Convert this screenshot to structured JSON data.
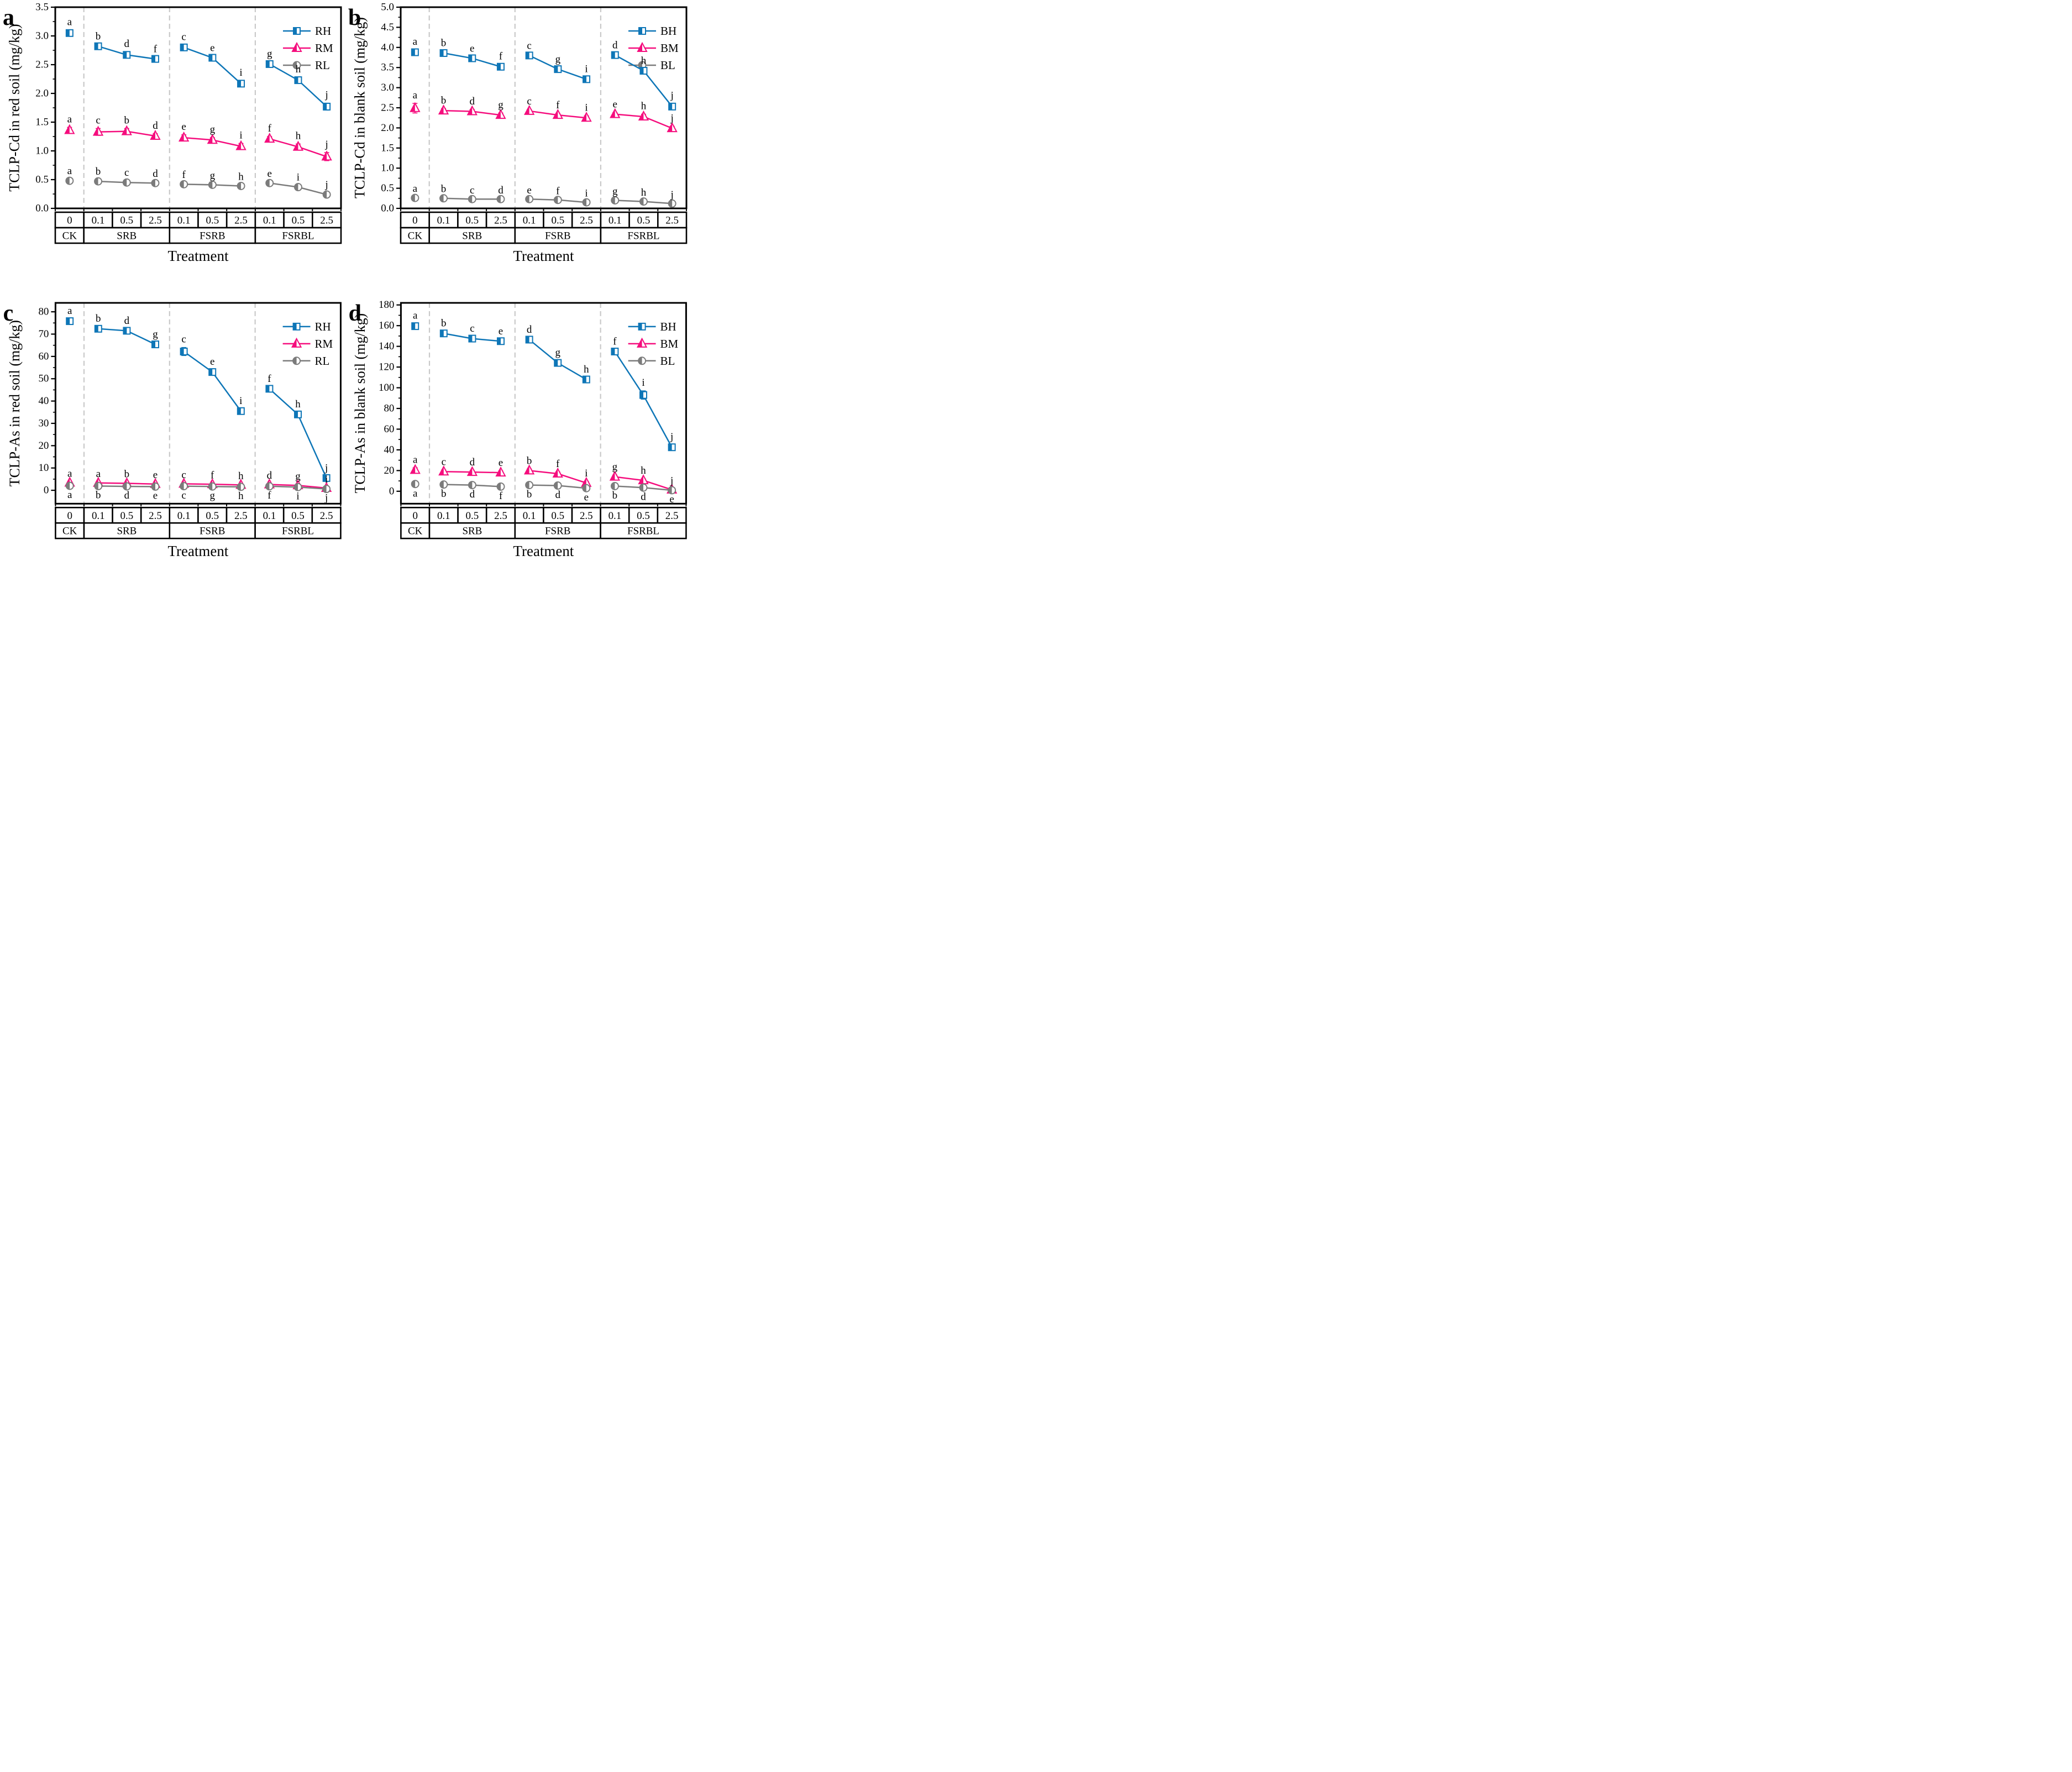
{
  "figure": {
    "xlabel": "Treatment",
    "dose_row": [
      "0",
      "0.1",
      "0.5",
      "2.5",
      "0.1",
      "0.5",
      "2.5",
      "0.1",
      "0.5",
      "2.5"
    ],
    "group_row": [
      {
        "label": "CK",
        "span": 1
      },
      {
        "label": "SRB",
        "span": 3
      },
      {
        "label": "FSRB",
        "span": 3
      },
      {
        "label": "FSRBL",
        "span": 3
      }
    ],
    "colors": {
      "high": "#0e76b7",
      "mid": "#f50d7d",
      "low": "#7b7b7b"
    },
    "separator_color": "#c9c9c9"
  },
  "chart_data": [
    {
      "id": "a",
      "panel_label": "a",
      "type": "line",
      "ylabel": "TCLP-Cd in red soil (mg/kg)",
      "xlabel": "Treatment",
      "ylim": [
        0,
        3.5
      ],
      "yticks": {
        "major": 0.5,
        "minor": 0.25,
        "max": 3.5,
        "decimals": 1
      },
      "legend_position": "top-right",
      "legend": [
        "RH",
        "RM",
        "RL"
      ],
      "series": [
        {
          "name": "RH",
          "marker": "square",
          "color_key": "high",
          "letters_position": "above",
          "values": [
            3.05,
            2.82,
            2.67,
            2.6,
            2.8,
            2.62,
            2.17,
            2.51,
            2.23,
            1.77
          ],
          "errors": [
            0.05,
            0.03,
            0.05,
            0.03,
            0.04,
            0.03,
            0.05,
            0.04,
            0.05,
            0.06
          ],
          "letters": [
            "a",
            "b",
            "d",
            "f",
            "c",
            "e",
            "i",
            "g",
            "h",
            "j"
          ]
        },
        {
          "name": "RM",
          "marker": "triangle",
          "color_key": "mid",
          "letters_position": "above",
          "values": [
            1.36,
            1.33,
            1.34,
            1.26,
            1.23,
            1.19,
            1.08,
            1.21,
            1.07,
            0.9
          ],
          "errors": [
            0.05,
            0.06,
            0.05,
            0.04,
            0.05,
            0.04,
            0.05,
            0.04,
            0.05,
            0.07
          ],
          "letters": [
            "a",
            "c",
            "b",
            "d",
            "e",
            "g",
            "i",
            "f",
            "h",
            "j"
          ]
        },
        {
          "name": "RL",
          "marker": "circle",
          "color_key": "low",
          "letters_position": "above",
          "values": [
            0.48,
            0.47,
            0.45,
            0.44,
            0.42,
            0.41,
            0.39,
            0.44,
            0.37,
            0.24
          ],
          "errors": [
            0.03,
            0.03,
            0.03,
            0.02,
            0.02,
            0.02,
            0.02,
            0.02,
            0.03,
            0.03
          ],
          "letters": [
            "a",
            "b",
            "c",
            "d",
            "f",
            "g",
            "h",
            "e",
            "i",
            "j"
          ]
        }
      ]
    },
    {
      "id": "b",
      "panel_label": "b",
      "type": "line",
      "ylabel": "TCLP-Cd in blank soil (mg/kg)",
      "xlabel": "Treatment",
      "ylim": [
        0,
        5.0
      ],
      "yticks": {
        "major": 0.5,
        "minor": 0.25,
        "max": 5.0,
        "decimals": 1
      },
      "legend_position": "top-right",
      "legend": [
        "BH",
        "BM",
        "BL"
      ],
      "series": [
        {
          "name": "BH",
          "marker": "square",
          "color_key": "high",
          "letters_position": "above",
          "values": [
            3.88,
            3.86,
            3.73,
            3.52,
            3.8,
            3.46,
            3.21,
            3.81,
            3.42,
            2.53
          ],
          "errors": [
            0.06,
            0.05,
            0.04,
            0.06,
            0.04,
            0.04,
            0.05,
            0.04,
            0.05,
            0.07
          ],
          "letters": [
            "a",
            "b",
            "e",
            "f",
            "c",
            "g",
            "i",
            "d",
            "h",
            "j"
          ]
        },
        {
          "name": "BM",
          "marker": "triangle",
          "color_key": "mid",
          "letters_position": "above",
          "values": [
            2.49,
            2.43,
            2.41,
            2.32,
            2.42,
            2.32,
            2.25,
            2.34,
            2.28,
            1.99
          ],
          "errors": [
            0.12,
            0.05,
            0.05,
            0.05,
            0.04,
            0.04,
            0.05,
            0.04,
            0.06,
            0.05
          ],
          "letters": [
            "a",
            "b",
            "d",
            "g",
            "c",
            "f",
            "i",
            "e",
            "h",
            "j"
          ]
        },
        {
          "name": "BL",
          "marker": "circle",
          "color_key": "low",
          "letters_position": "above",
          "values": [
            0.26,
            0.25,
            0.23,
            0.23,
            0.23,
            0.21,
            0.15,
            0.2,
            0.17,
            0.12
          ],
          "errors": [
            0.03,
            0.03,
            0.02,
            0.02,
            0.02,
            0.02,
            0.02,
            0.02,
            0.02,
            0.02
          ],
          "letters": [
            "a",
            "b",
            "c",
            "d",
            "e",
            "f",
            "i",
            "g",
            "h",
            "j"
          ]
        }
      ]
    },
    {
      "id": "c",
      "panel_label": "c",
      "type": "line",
      "ylabel": "TCLP-As in red soil (mg/kg)",
      "xlabel": "Treatment",
      "ylim": [
        -6,
        84
      ],
      "yticks": {
        "major": 10,
        "minor": 5,
        "max": 80,
        "decimals": 0
      },
      "legend_position": "top-right",
      "legend": [
        "RH",
        "RM",
        "RL"
      ],
      "series": [
        {
          "name": "RH",
          "marker": "square",
          "color_key": "high",
          "letters_position": "above",
          "values": [
            75.8,
            72.4,
            71.5,
            65.4,
            62.2,
            53.0,
            35.5,
            45.5,
            34.0,
            5.5
          ],
          "errors": [
            1.0,
            0.9,
            0.9,
            0.9,
            1.8,
            1.0,
            0.9,
            0.9,
            0.9,
            0.9
          ],
          "letters": [
            "a",
            "b",
            "d",
            "g",
            "c",
            "e",
            "i",
            "f",
            "h",
            "j"
          ]
        },
        {
          "name": "RM",
          "marker": "triangle",
          "color_key": "mid",
          "letters_position": "above",
          "values": [
            3.4,
            3.3,
            3.1,
            2.8,
            2.9,
            2.7,
            2.4,
            2.6,
            2.2,
            1.0
          ],
          "errors": [
            0.5,
            0.5,
            0.5,
            0.4,
            0.4,
            0.4,
            0.4,
            0.4,
            0.4,
            0.3
          ],
          "letters": [
            "a",
            "a",
            "b",
            "e",
            "c",
            "f",
            "h",
            "d",
            "g",
            "i"
          ]
        },
        {
          "name": "RL",
          "marker": "circle",
          "color_key": "low",
          "letters_position": "below",
          "values": [
            2.0,
            1.9,
            1.75,
            1.65,
            1.85,
            1.7,
            1.55,
            1.8,
            1.45,
            0.6
          ],
          "errors": [
            0.3,
            0.3,
            0.3,
            0.3,
            0.3,
            0.3,
            0.3,
            0.3,
            0.3,
            0.2
          ],
          "letters": [
            "a",
            "b",
            "d",
            "e",
            "c",
            "g",
            "h",
            "f",
            "i",
            "j"
          ]
        }
      ]
    },
    {
      "id": "d",
      "panel_label": "d",
      "type": "line",
      "ylabel": "TCLP-As in blank soil (mg/kg)",
      "xlabel": "Treatment",
      "ylim": [
        -12,
        182
      ],
      "yticks": {
        "major": 20,
        "minor": 10,
        "max": 180,
        "decimals": 0
      },
      "legend_position": "top-right",
      "legend": [
        "BH",
        "BM",
        "BL"
      ],
      "series": [
        {
          "name": "BH",
          "marker": "square",
          "color_key": "high",
          "letters_position": "above",
          "values": [
            159.5,
            152.5,
            147.5,
            145.0,
            146.5,
            124.0,
            108.0,
            135.0,
            93.0,
            42.5
          ],
          "errors": [
            2.5,
            2.0,
            1.8,
            1.8,
            1.8,
            2.2,
            1.8,
            1.8,
            4.0,
            2.2
          ],
          "letters": [
            "a",
            "b",
            "c",
            "e",
            "d",
            "g",
            "h",
            "f",
            "i",
            "j"
          ]
        },
        {
          "name": "BM",
          "marker": "triangle",
          "color_key": "mid",
          "letters_position": "above",
          "values": [
            20.5,
            19.0,
            18.5,
            18.0,
            20.0,
            17.0,
            8.0,
            14.0,
            10.5,
            1.5
          ],
          "errors": [
            2.2,
            1.6,
            1.6,
            1.6,
            1.6,
            1.6,
            1.6,
            1.6,
            1.6,
            0.8
          ],
          "letters": [
            "a",
            "c",
            "d",
            "e",
            "b",
            "f",
            "i",
            "g",
            "h",
            "j"
          ]
        },
        {
          "name": "BL",
          "marker": "circle",
          "color_key": "low",
          "letters_position": "below",
          "values": [
            7.0,
            6.5,
            6.0,
            4.5,
            6.0,
            5.5,
            3.0,
            5.0,
            3.5,
            1.0
          ],
          "errors": [
            1.0,
            0.8,
            0.8,
            0.8,
            0.8,
            0.8,
            0.8,
            0.8,
            0.8,
            0.5
          ],
          "letters": [
            "a",
            "b",
            "d",
            "f",
            "b",
            "d",
            "e",
            "b",
            "d",
            "e"
          ]
        }
      ]
    }
  ]
}
